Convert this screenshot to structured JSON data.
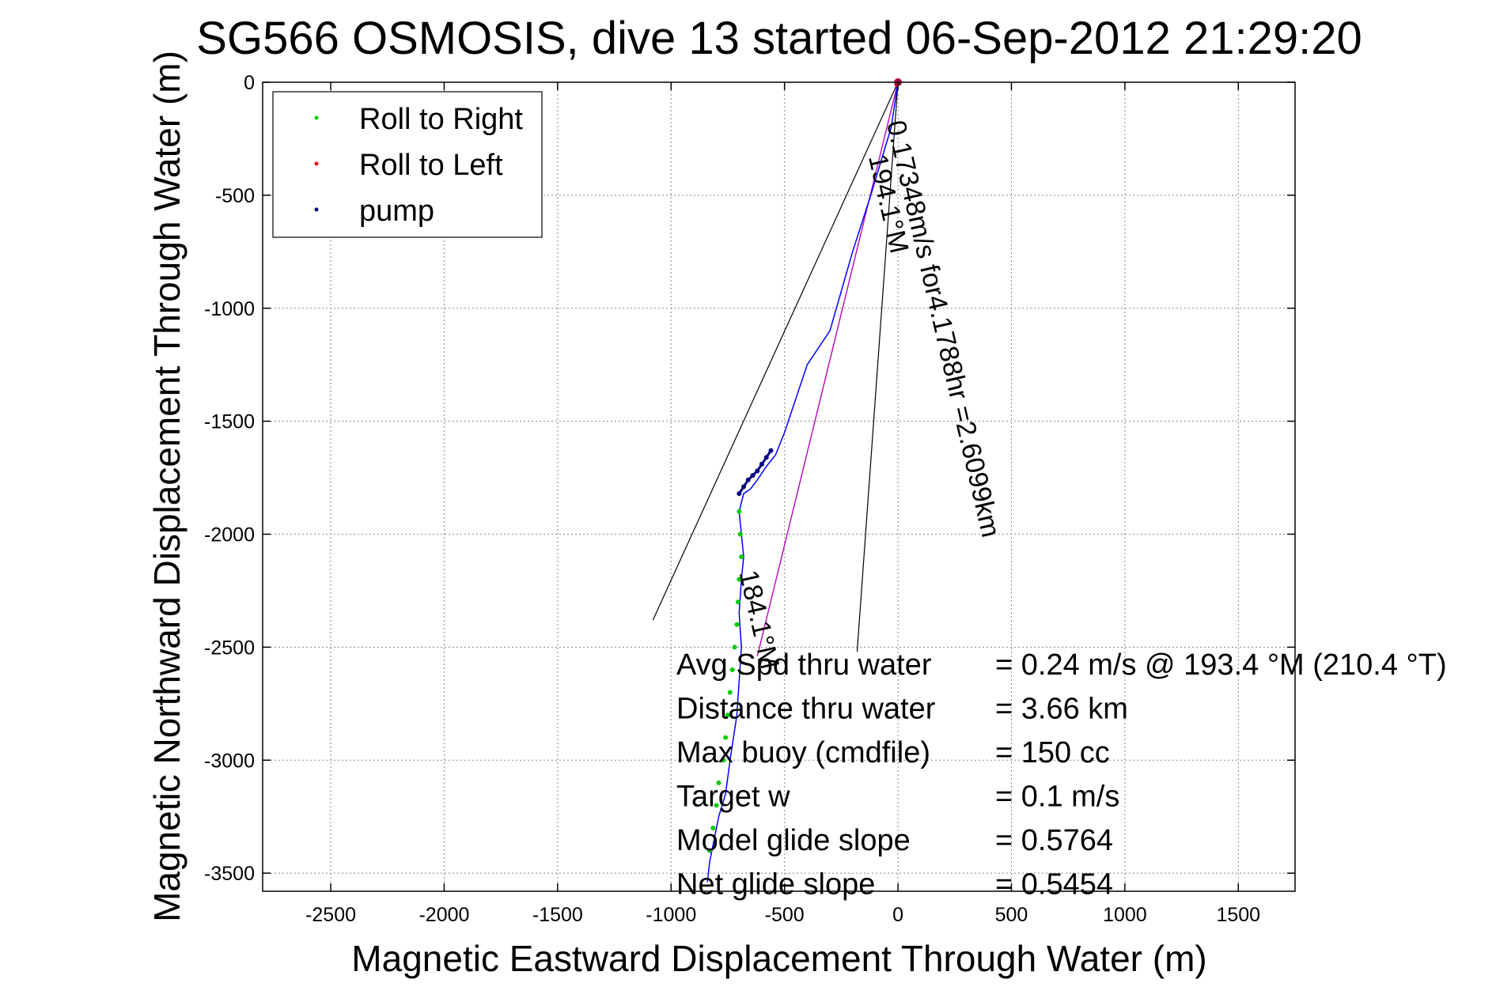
{
  "chart_data": {
    "type": "scatter",
    "title": "SG566 OSMOSIS, dive 13 started 06-Sep-2012 21:29:20",
    "xlabel": "Magnetic Eastward Displacement Through Water (m)",
    "ylabel": "Magnetic Northward Displacement Through Water (m)",
    "xlim": [
      -2800,
      1750
    ],
    "ylim": [
      -3580,
      0
    ],
    "xticks": [
      -2500,
      -2000,
      -1500,
      -1000,
      -500,
      0,
      500,
      1000,
      1500
    ],
    "yticks": [
      0,
      -500,
      -1000,
      -1500,
      -2000,
      -2500,
      -3000,
      -3500
    ],
    "grid": true,
    "legend_position": "top-left",
    "legend": [
      {
        "label": "Roll to Right",
        "color": "#00cc00"
      },
      {
        "label": "Roll to Left",
        "color": "#ff0000"
      },
      {
        "label": "pump",
        "color": "#000080"
      }
    ],
    "series": [
      {
        "name": "track",
        "color": "#0000ff",
        "x": [
          0,
          -30,
          -60,
          -120,
          -200,
          -300,
          -400,
          -450,
          -500,
          -540,
          -580,
          -620,
          -650,
          -680,
          -700,
          -680,
          -690,
          -700,
          -690,
          -700,
          -710,
          -740,
          -760,
          -790,
          -810,
          -830,
          -840
        ],
        "y": [
          0,
          -200,
          -300,
          -500,
          -750,
          -1100,
          -1250,
          -1400,
          -1550,
          -1650,
          -1700,
          -1760,
          -1800,
          -1820,
          -1900,
          -2100,
          -2200,
          -2350,
          -2500,
          -2650,
          -2800,
          -3000,
          -3150,
          -3250,
          -3350,
          -3450,
          -3540
        ]
      },
      {
        "name": "Roll to Right",
        "color": "#00cc00",
        "x": [
          -700,
          -695,
          -690,
          -700,
          -705,
          -710,
          -720,
          -730,
          -740,
          -750,
          -760,
          -770,
          -790,
          -800,
          -815,
          -830
        ],
        "y": [
          -1900,
          -2000,
          -2100,
          -2200,
          -2300,
          -2400,
          -2500,
          -2600,
          -2700,
          -2800,
          -2900,
          -3000,
          -3100,
          -3200,
          -3300,
          -3400
        ]
      },
      {
        "name": "Roll to Left",
        "color": "#ff0000",
        "x": [
          0,
          -5
        ],
        "y": [
          0,
          -10
        ]
      },
      {
        "name": "pump",
        "color": "#000080",
        "x": [
          -700,
          -680,
          -660,
          -640,
          -620,
          -600,
          -580,
          -560
        ],
        "y": [
          -1820,
          -1790,
          -1760,
          -1740,
          -1720,
          -1690,
          -1660,
          -1630
        ]
      }
    ],
    "direction_lines": [
      {
        "x": [
          0,
          -1080
        ],
        "y": [
          0,
          -2380
        ]
      },
      {
        "x": [
          0,
          -180
        ],
        "y": [
          0,
          -2520
        ]
      },
      {
        "x": [
          0,
          -620
        ],
        "y": [
          0,
          -2540
        ]
      }
    ],
    "annotations": [
      {
        "text": "0.17348m/s for4.1788hr =2.6099km",
        "x": -50,
        "y": -180,
        "rotation": 77
      },
      {
        "text": "194.1°M",
        "x": -130,
        "y": -330,
        "rotation": 77
      },
      {
        "text": "184.1°M",
        "x": -700,
        "y": -2170,
        "rotation": 77
      }
    ],
    "stats": [
      {
        "label": "Avg Spd thru water",
        "value": "=  0.24 m/s @ 193.4 °M (210.4 °T)"
      },
      {
        "label": "Distance thru water",
        "value": "=  3.66 km"
      },
      {
        "label": "Max buoy (cmdfile)",
        "value": "= 150 cc"
      },
      {
        "label": "Target w",
        "value": "= 0.1 m/s"
      },
      {
        "label": "Model glide slope",
        "value": "= 0.5764"
      },
      {
        "label": "Net glide slope",
        "value": "= 0.5454"
      }
    ]
  }
}
